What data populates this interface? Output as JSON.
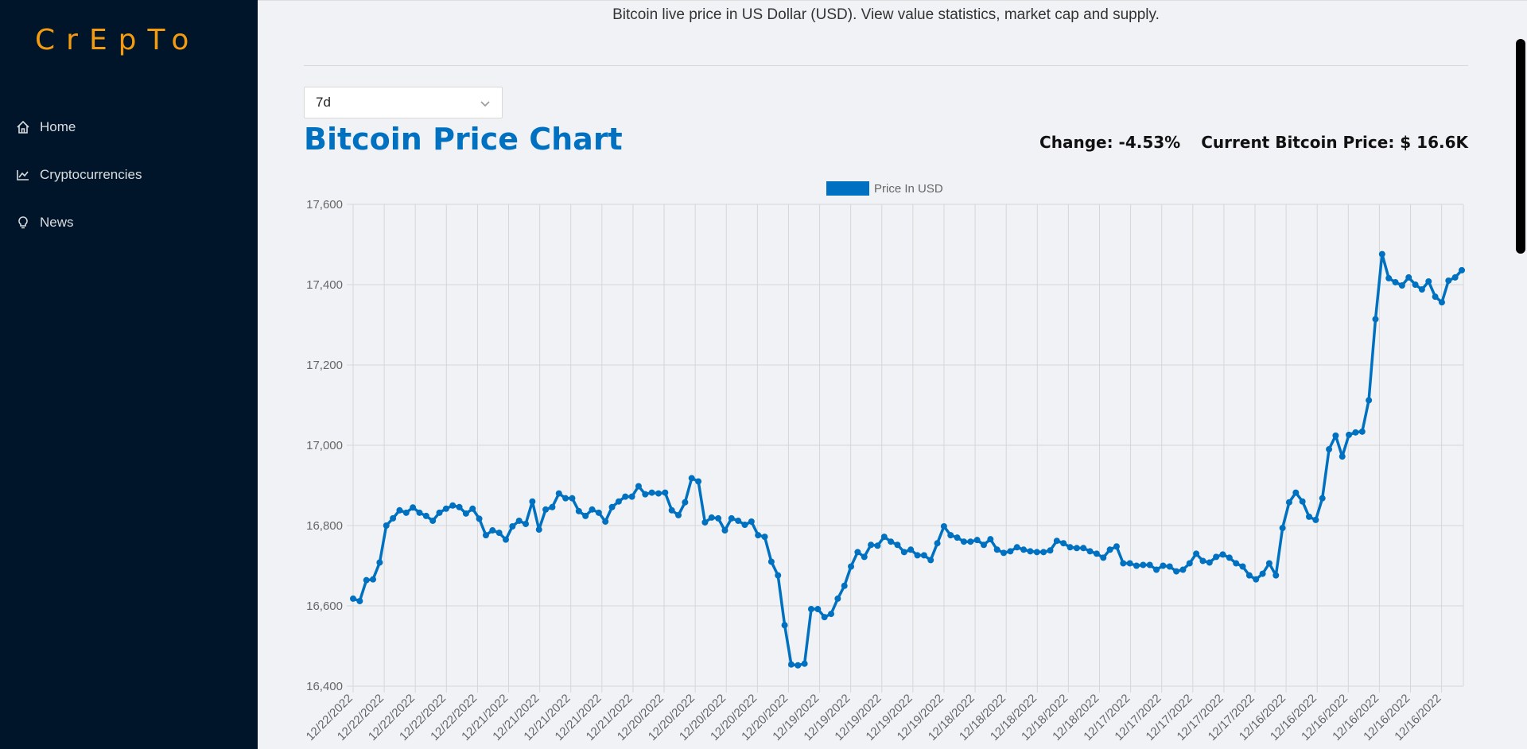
{
  "app": {
    "logo": "CrEpTo",
    "accent": "#f39c12",
    "sidebar_bg": "#001529"
  },
  "menu": [
    {
      "label": "Home",
      "icon": "home-icon"
    },
    {
      "label": "Cryptocurrencies",
      "icon": "line-chart-icon"
    },
    {
      "label": "News",
      "icon": "bulb-icon"
    }
  ],
  "header": {
    "subtitle": "Bitcoin live price in US Dollar (USD). View value statistics, market cap and supply."
  },
  "period_select": {
    "value": "7d"
  },
  "chart_title": "Bitcoin Price Chart",
  "stats": {
    "change": "Change: -4.53%",
    "current_price": "Current Bitcoin Price: $ 16.6K"
  },
  "chart_data": {
    "type": "line",
    "legend": {
      "label": "Price In USD",
      "color": "#0071c1",
      "position": "top-center"
    },
    "ylim": [
      16400,
      17600
    ],
    "y_ticks": [
      "16,400",
      "16,600",
      "16,800",
      "17,000",
      "17,200",
      "17,400",
      "17,600"
    ],
    "x_tick_labels": [
      "12/22/2022",
      "12/22/2022",
      "12/22/2022",
      "12/22/2022",
      "12/22/2022",
      "12/21/2022",
      "12/21/2022",
      "12/21/2022",
      "12/21/2022",
      "12/21/2022",
      "12/20/2022",
      "12/20/2022",
      "12/20/2022",
      "12/20/2022",
      "12/20/2022",
      "12/19/2022",
      "12/19/2022",
      "12/19/2022",
      "12/19/2022",
      "12/19/2022",
      "12/18/2022",
      "12/18/2022",
      "12/18/2022",
      "12/18/2022",
      "12/18/2022",
      "12/17/2022",
      "12/17/2022",
      "12/17/2022",
      "12/17/2022",
      "12/17/2022",
      "12/16/2022",
      "12/16/2022",
      "12/16/2022",
      "12/16/2022",
      "12/16/2022",
      "12/16/2022"
    ],
    "grid": true,
    "series": [
      {
        "name": "Price In USD",
        "color": "#0071c1",
        "values": [
          16618,
          16612,
          16664,
          16666,
          16708,
          16800,
          16818,
          16838,
          16832,
          16845,
          16832,
          16824,
          16812,
          16832,
          16842,
          16850,
          16846,
          16830,
          16842,
          16817,
          16776,
          16788,
          16782,
          16765,
          16798,
          16812,
          16804,
          16860,
          16790,
          16840,
          16846,
          16880,
          16868,
          16868,
          16836,
          16824,
          16840,
          16832,
          16810,
          16846,
          16860,
          16872,
          16872,
          16898,
          16878,
          16882,
          16880,
          16882,
          16838,
          16826,
          16858,
          16918,
          16910,
          16808,
          16820,
          16818,
          16788,
          16818,
          16812,
          16802,
          16810,
          16776,
          16772,
          16710,
          16676,
          16552,
          16454,
          16452,
          16456,
          16592,
          16592,
          16572,
          16580,
          16618,
          16650,
          16698,
          16734,
          16722,
          16752,
          16750,
          16772,
          16760,
          16752,
          16734,
          16740,
          16726,
          16726,
          16714,
          16756,
          16798,
          16776,
          16770,
          16760,
          16760,
          16764,
          16752,
          16766,
          16740,
          16732,
          16736,
          16746,
          16740,
          16736,
          16734,
          16734,
          16738,
          16762,
          16756,
          16746,
          16744,
          16744,
          16736,
          16730,
          16720,
          16740,
          16748,
          16706,
          16706,
          16700,
          16702,
          16702,
          16690,
          16700,
          16698,
          16686,
          16690,
          16706,
          16730,
          16712,
          16708,
          16722,
          16728,
          16720,
          16706,
          16698,
          16676,
          16666,
          16680,
          16706,
          16676,
          16794,
          16858,
          16882,
          16860,
          16822,
          16814,
          16868,
          16990,
          17024,
          16972,
          17026,
          17032,
          17034,
          17112,
          17314,
          17476,
          17416,
          17406,
          17398,
          17418,
          17400,
          17388,
          17408,
          17370,
          17356,
          17410,
          17418,
          17436
        ]
      }
    ]
  }
}
